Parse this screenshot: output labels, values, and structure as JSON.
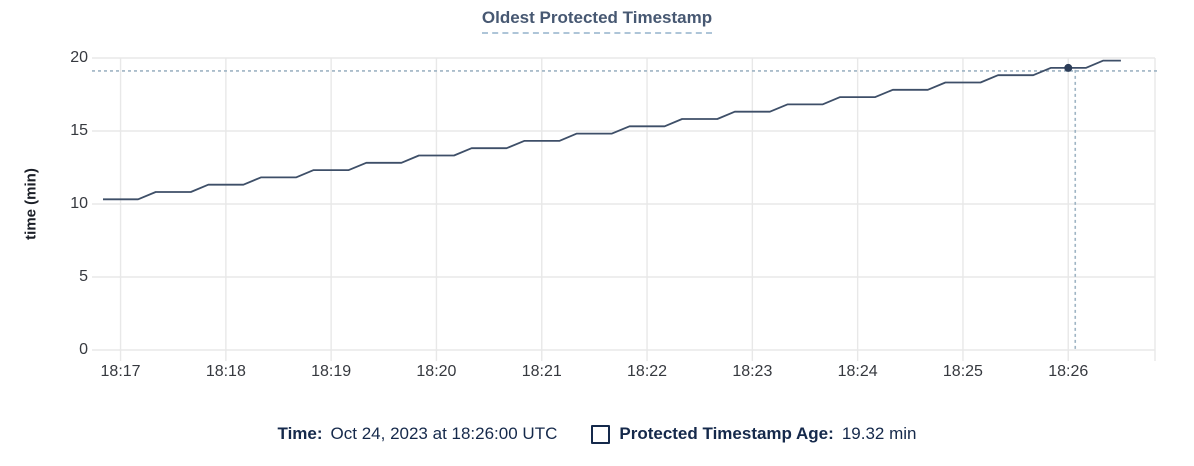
{
  "chart": {
    "title": "Oldest Protected Timestamp",
    "ylabel": "time (min)"
  },
  "legend": {
    "time_label": "Time:",
    "time_value": "Oct 24, 2023 at 18:26:00 UTC",
    "series_label": "Protected Timestamp Age:",
    "series_value": "19.32 min"
  },
  "colors": {
    "line": "#3E4F68",
    "marker": "#2C3D58",
    "grid": "#E8E8E8",
    "crosshair": "#9FB4C4",
    "title": "#475872",
    "title_underline": "#AEC5D8",
    "tick_text": "#36393F",
    "axis_label_text": "#1B1F27",
    "legend_text": "#15294B",
    "background": "#FFFFFF"
  },
  "chart_data": {
    "type": "line",
    "title": "Oldest Protected Timestamp",
    "xlabel": "",
    "ylabel": "time (min)",
    "grid": true,
    "y_ticks": [
      0,
      5,
      10,
      15,
      20
    ],
    "y_range": [
      0,
      20
    ],
    "x_tick_labels": [
      "18:17",
      "18:18",
      "18:19",
      "18:20",
      "18:21",
      "18:22",
      "18:23",
      "18:24",
      "18:25",
      "18:26"
    ],
    "x_start_time": "18:16:50",
    "x_end_time": "18:26:30",
    "series": [
      {
        "name": "Protected Timestamp Age",
        "unit": "min",
        "points_t_seconds_vs_min": [
          [
            0,
            10.32
          ],
          [
            20,
            10.32
          ],
          [
            30,
            10.82
          ],
          [
            50,
            10.82
          ],
          [
            60,
            11.32
          ],
          [
            80,
            11.32
          ],
          [
            90,
            11.82
          ],
          [
            110,
            11.82
          ],
          [
            120,
            12.32
          ],
          [
            140,
            12.32
          ],
          [
            150,
            12.82
          ],
          [
            170,
            12.82
          ],
          [
            180,
            13.32
          ],
          [
            200,
            13.32
          ],
          [
            210,
            13.82
          ],
          [
            230,
            13.82
          ],
          [
            240,
            14.32
          ],
          [
            260,
            14.32
          ],
          [
            270,
            14.82
          ],
          [
            290,
            14.82
          ],
          [
            300,
            15.32
          ],
          [
            320,
            15.32
          ],
          [
            330,
            15.82
          ],
          [
            350,
            15.82
          ],
          [
            360,
            16.32
          ],
          [
            380,
            16.32
          ],
          [
            390,
            16.82
          ],
          [
            410,
            16.82
          ],
          [
            420,
            17.32
          ],
          [
            440,
            17.32
          ],
          [
            450,
            17.82
          ],
          [
            470,
            17.82
          ],
          [
            480,
            18.32
          ],
          [
            500,
            18.32
          ],
          [
            510,
            18.82
          ],
          [
            530,
            18.82
          ],
          [
            540,
            19.32
          ],
          [
            560,
            19.32
          ],
          [
            570,
            19.82
          ],
          [
            580,
            19.82
          ]
        ]
      }
    ],
    "hover_point": {
      "time": "18:26:00",
      "t_seconds": 550,
      "value_min": 19.32
    }
  }
}
